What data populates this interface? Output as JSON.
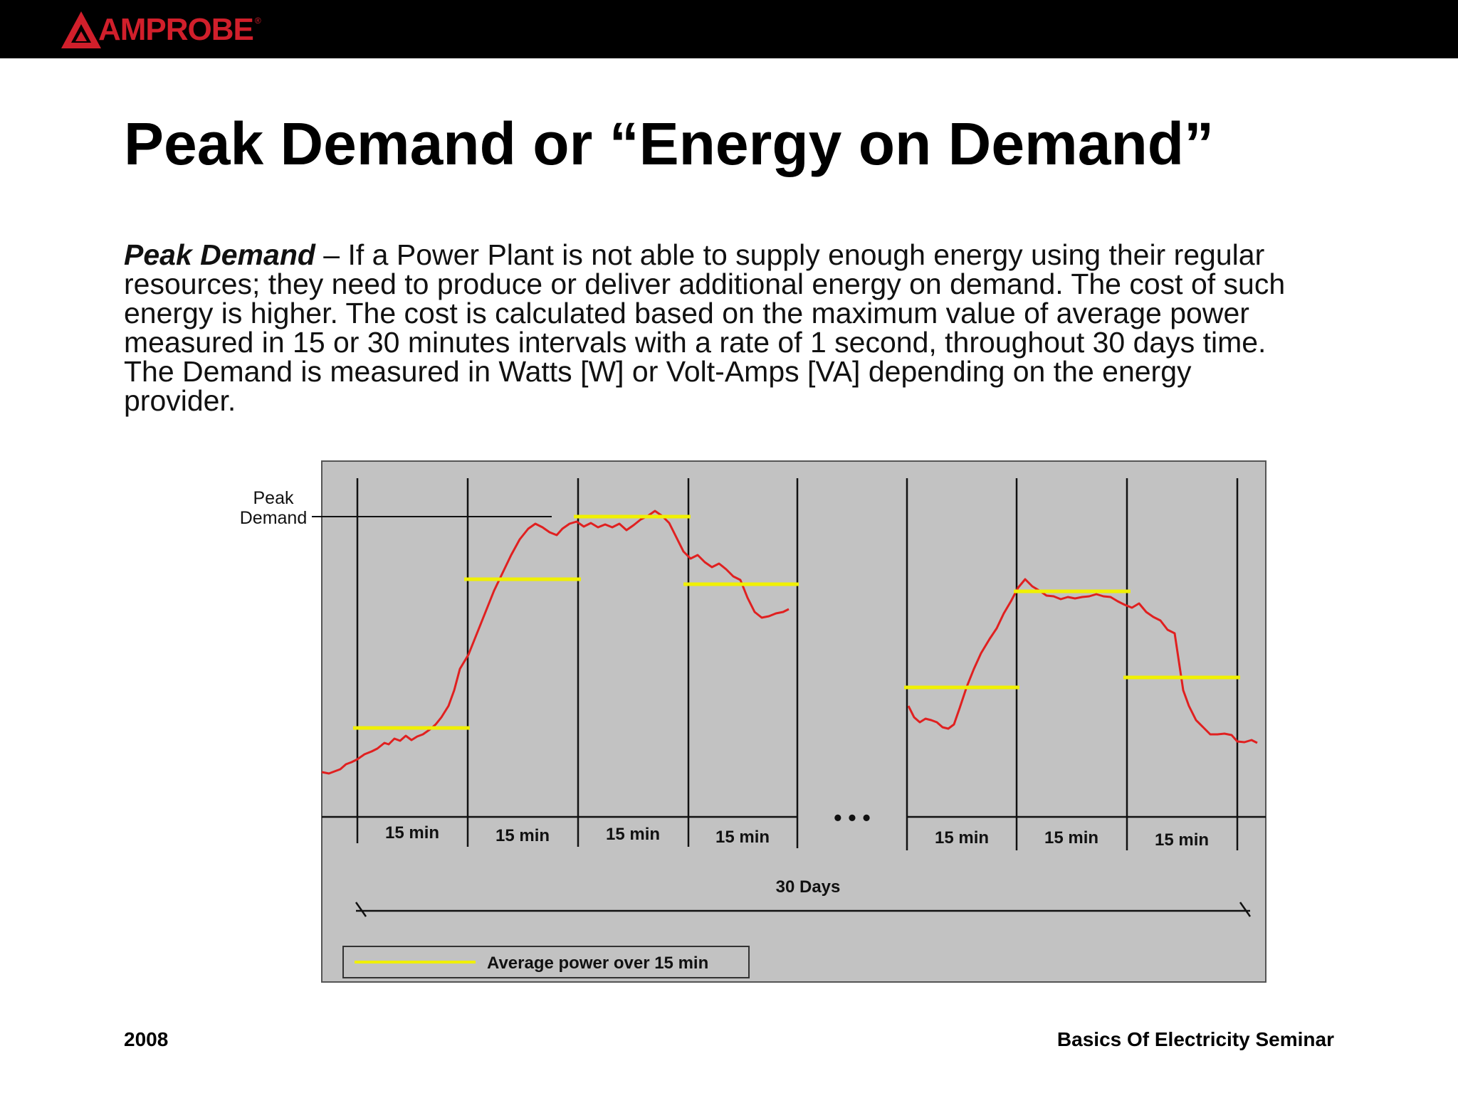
{
  "brand": {
    "logo_text": "AMPROBE",
    "logo_color": "#d11f2b",
    "icon": "amprobe-triangle-logo"
  },
  "slide": {
    "title": "Peak Demand or “Energy on Demand”",
    "paragraph_term": "Peak Demand",
    "paragraph_text": " – If a Power Plant is not able to supply enough energy using their regular resources; they need to produce or deliver additional energy on demand. The cost of such energy is higher. The cost is calculated based on the maximum value of average power measured in 15 or 30 minutes intervals with a rate of 1 second, throughout 30 days time. The Demand is measured in Watts [W] or Volt-Amps [VA] depending on the energy provider."
  },
  "diagram": {
    "peak_label_line1": "Peak",
    "peak_label_line2": "Demand",
    "interval_labels": [
      "15 min",
      "15 min",
      "15 min",
      "15 min",
      "15 min",
      "15 min",
      "15 min"
    ],
    "ellipsis": "• • •",
    "span_label": "30 Days",
    "legend_label": "Average power over 15 min",
    "colors": {
      "background": "#c2c2c2",
      "power_curve": "#e02020",
      "average_line": "#f0f000",
      "grid": "#111111"
    }
  },
  "footer": {
    "year": "2008",
    "seminar": "Basics Of Electricity Seminar"
  }
}
